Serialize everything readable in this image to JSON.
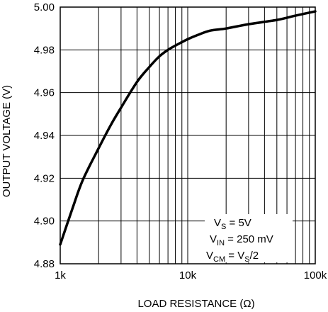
{
  "chart_data": {
    "type": "line",
    "xscale": "log",
    "xlim": [
      1000,
      100000
    ],
    "ylim": [
      4.88,
      5.0
    ],
    "grid": true,
    "xlabel": "LOAD RESISTANCE (Ω)",
    "ylabel": "OUTPUT VOLTAGE (V)",
    "x_tick_labels": [
      "1k",
      "10k",
      "100k"
    ],
    "x_tick_values": [
      1000,
      10000,
      100000
    ],
    "y_tick_labels": [
      "4.88",
      "4.90",
      "4.92",
      "4.94",
      "4.96",
      "4.98",
      "5.00"
    ],
    "y_tick_values": [
      4.88,
      4.9,
      4.92,
      4.94,
      4.96,
      4.98,
      5.0
    ],
    "series": [
      {
        "x": [
          1000,
          1250,
          1500,
          2000,
          2500,
          3000,
          4000,
          5000,
          6000,
          7000,
          8000,
          10000,
          12000,
          15000,
          20000,
          30000,
          50000,
          70000,
          100000
        ],
        "y": [
          4.889,
          4.906,
          4.919,
          4.934,
          4.945,
          4.953,
          4.965,
          4.972,
          4.977,
          4.98,
          4.982,
          4.985,
          4.987,
          4.989,
          4.99,
          4.992,
          4.994,
          4.996,
          4.998
        ]
      }
    ],
    "annotations": {
      "line1": {
        "main": "V",
        "sub": "S",
        "tail": " = 5V"
      },
      "line2": {
        "main": "V",
        "sub": "IN",
        "tail": " = 250 mV"
      },
      "line3": {
        "main": "V",
        "sub": "CM",
        "mid": " = V",
        "sub2": "S",
        "tail": "/2"
      }
    }
  }
}
